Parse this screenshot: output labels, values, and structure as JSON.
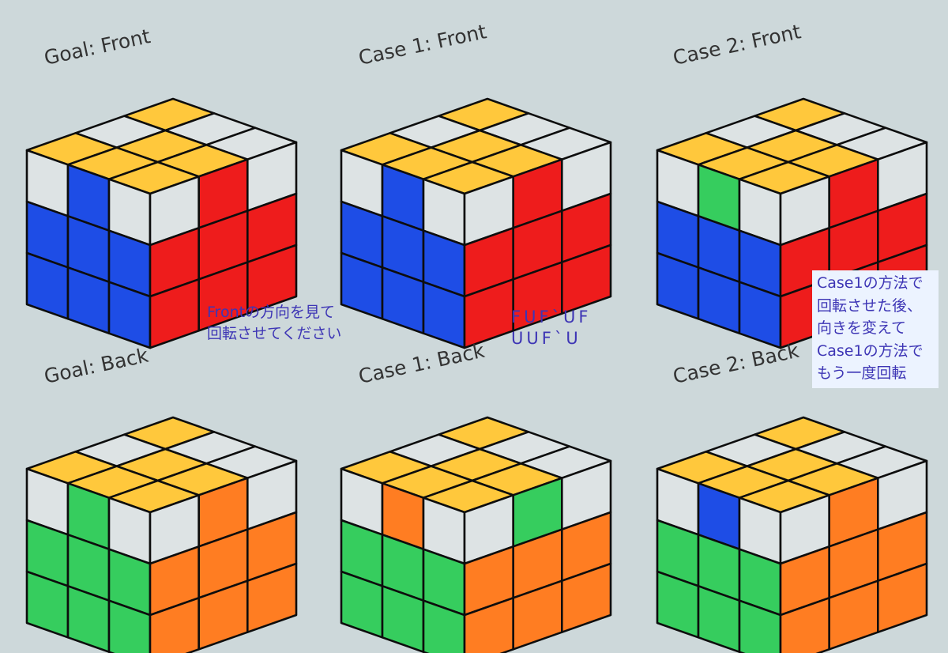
{
  "colors": {
    "Y": "#ffc83c",
    "W": "#dde3e4",
    "B": "#1e4de6",
    "R": "#ee1c1c",
    "G": "#36cd5e",
    "O": "#ff7d22",
    "outline": "#0d0d0d",
    "background": "#cdd8da",
    "note_text": "#3d35b5",
    "note_box": "#ecf3ff"
  },
  "cubes": [
    {
      "label": "Goal: Front",
      "top": [
        [
          "Y",
          "W",
          "W"
        ],
        [
          "W",
          "Y",
          "Y"
        ],
        [
          "Y",
          "Y",
          "Y"
        ]
      ],
      "left": [
        [
          "W",
          "B",
          "W"
        ],
        [
          "B",
          "B",
          "B"
        ],
        [
          "B",
          "B",
          "B"
        ]
      ],
      "right": [
        [
          "W",
          "R",
          "W"
        ],
        [
          "R",
          "R",
          "R"
        ],
        [
          "R",
          "R",
          "R"
        ]
      ]
    },
    {
      "label": "Case 1: Front",
      "top": [
        [
          "Y",
          "W",
          "W"
        ],
        [
          "W",
          "Y",
          "Y"
        ],
        [
          "Y",
          "Y",
          "Y"
        ]
      ],
      "left": [
        [
          "W",
          "B",
          "W"
        ],
        [
          "B",
          "B",
          "B"
        ],
        [
          "B",
          "B",
          "B"
        ]
      ],
      "right": [
        [
          "W",
          "R",
          "W"
        ],
        [
          "R",
          "R",
          "R"
        ],
        [
          "R",
          "R",
          "R"
        ]
      ]
    },
    {
      "label": "Case 2: Front",
      "top": [
        [
          "Y",
          "W",
          "W"
        ],
        [
          "W",
          "Y",
          "Y"
        ],
        [
          "Y",
          "Y",
          "Y"
        ]
      ],
      "left": [
        [
          "W",
          "G",
          "W"
        ],
        [
          "B",
          "B",
          "B"
        ],
        [
          "B",
          "B",
          "B"
        ]
      ],
      "right": [
        [
          "W",
          "R",
          "W"
        ],
        [
          "R",
          "R",
          "R"
        ],
        [
          "R",
          "R",
          "R"
        ]
      ]
    },
    {
      "label": "Goal: Back",
      "top": [
        [
          "Y",
          "W",
          "W"
        ],
        [
          "W",
          "Y",
          "Y"
        ],
        [
          "Y",
          "Y",
          "Y"
        ]
      ],
      "left": [
        [
          "W",
          "G",
          "W"
        ],
        [
          "G",
          "G",
          "G"
        ],
        [
          "G",
          "G",
          "G"
        ]
      ],
      "right": [
        [
          "W",
          "O",
          "W"
        ],
        [
          "O",
          "O",
          "O"
        ],
        [
          "O",
          "O",
          "O"
        ]
      ]
    },
    {
      "label": "Case 1: Back",
      "top": [
        [
          "Y",
          "W",
          "W"
        ],
        [
          "W",
          "Y",
          "Y"
        ],
        [
          "Y",
          "Y",
          "Y"
        ]
      ],
      "left": [
        [
          "W",
          "O",
          "W"
        ],
        [
          "G",
          "G",
          "G"
        ],
        [
          "G",
          "G",
          "G"
        ]
      ],
      "right": [
        [
          "W",
          "G",
          "W"
        ],
        [
          "O",
          "O",
          "O"
        ],
        [
          "O",
          "O",
          "O"
        ]
      ]
    },
    {
      "label": "Case 2: Back",
      "top": [
        [
          "Y",
          "W",
          "W"
        ],
        [
          "W",
          "Y",
          "Y"
        ],
        [
          "Y",
          "Y",
          "Y"
        ]
      ],
      "left": [
        [
          "W",
          "B",
          "W"
        ],
        [
          "G",
          "G",
          "G"
        ],
        [
          "G",
          "G",
          "G"
        ]
      ],
      "right": [
        [
          "W",
          "O",
          "W"
        ],
        [
          "O",
          "O",
          "O"
        ],
        [
          "O",
          "O",
          "O"
        ]
      ]
    }
  ],
  "notes": {
    "front_instruction": "Frontの方向を見て\n回転させてください",
    "algorithm": "FUF`UF\nUUF`U",
    "case2_instruction": "Case1の方法で\n回転させた後、\n向きを変えて\nCase1の方法で\nもう一度回転"
  }
}
